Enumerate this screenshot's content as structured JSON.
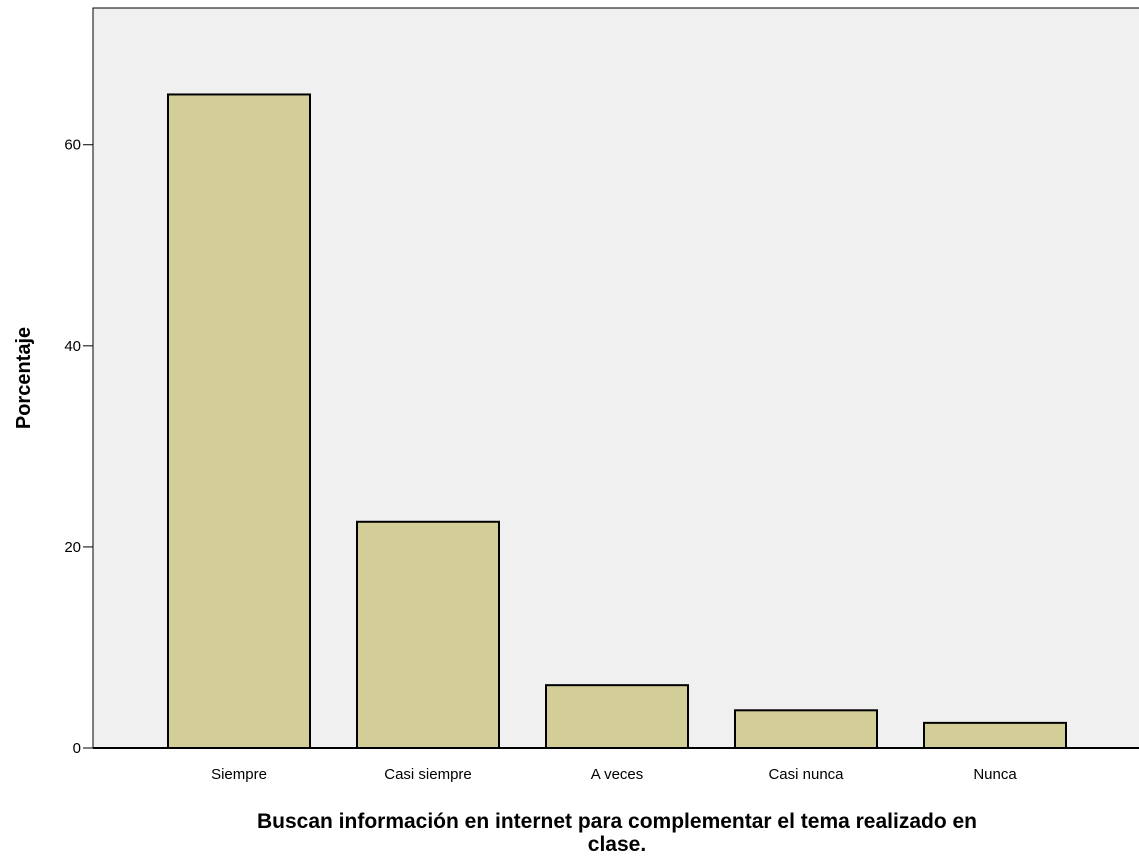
{
  "chart_data": {
    "type": "bar",
    "title": "",
    "xlabel": "Buscan información en internet para complementar el tema realizado en clase.",
    "ylabel": "Porcentaje",
    "categories": [
      "Siempre",
      "Casi siempre",
      "A veces",
      "Casi nunca",
      "Nunca"
    ],
    "values": [
      65.0,
      22.5,
      6.25,
      3.75,
      2.5
    ],
    "ylim": [
      0,
      73.6
    ],
    "yticks": [
      "0",
      "20",
      "40",
      "60"
    ],
    "grid": false,
    "colors": {
      "bar_fill": "#d3cd97",
      "plot_background": "#f0f0f0"
    }
  }
}
